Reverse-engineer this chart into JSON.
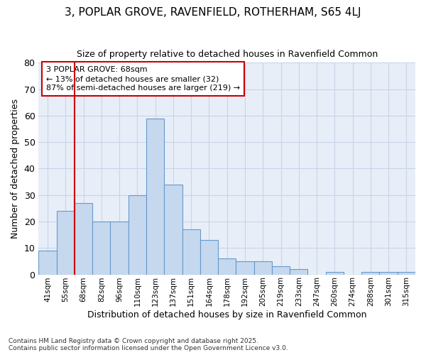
{
  "title": "3, POPLAR GROVE, RAVENFIELD, ROTHERHAM, S65 4LJ",
  "subtitle": "Size of property relative to detached houses in Ravenfield Common",
  "xlabel": "Distribution of detached houses by size in Ravenfield Common",
  "ylabel": "Number of detached properties",
  "bar_color": "#c5d8ee",
  "bar_edge_color": "#6699cc",
  "grid_color": "#c8d4e8",
  "bg_color": "#e8eef8",
  "vline_color": "#cc0000",
  "categories": [
    "41sqm",
    "55sqm",
    "68sqm",
    "82sqm",
    "96sqm",
    "110sqm",
    "123sqm",
    "137sqm",
    "151sqm",
    "164sqm",
    "178sqm",
    "192sqm",
    "205sqm",
    "219sqm",
    "233sqm",
    "247sqm",
    "260sqm",
    "274sqm",
    "288sqm",
    "301sqm",
    "315sqm"
  ],
  "values": [
    9,
    24,
    27,
    20,
    20,
    30,
    59,
    34,
    17,
    13,
    6,
    5,
    5,
    3,
    2,
    0,
    1,
    0,
    1,
    1,
    1
  ],
  "ylim": [
    0,
    80
  ],
  "yticks": [
    0,
    10,
    20,
    30,
    40,
    50,
    60,
    70,
    80
  ],
  "vline_index": 2,
  "annotation_text": "3 POPLAR GROVE: 68sqm\n← 13% of detached houses are smaller (32)\n87% of semi-detached houses are larger (219) →",
  "footnote": "Contains HM Land Registry data © Crown copyright and database right 2025.\nContains public sector information licensed under the Open Government Licence v3.0."
}
